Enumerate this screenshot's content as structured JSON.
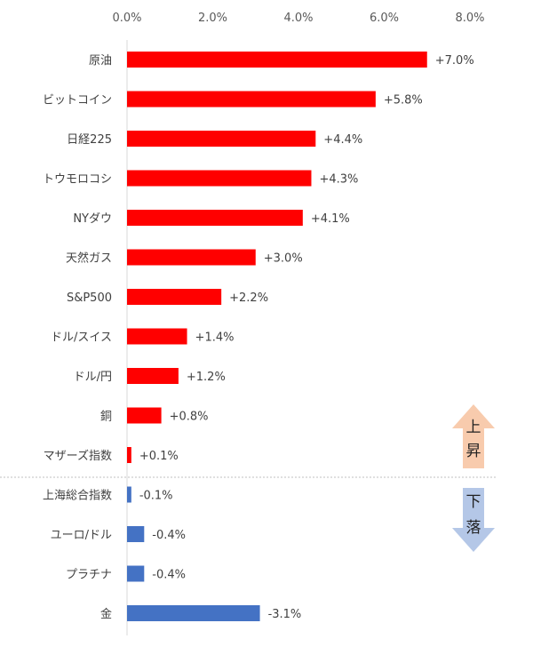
{
  "chart_data": {
    "type": "bar",
    "orientation": "horizontal",
    "xlim": [
      0,
      8
    ],
    "ticks": [
      "0.0%",
      "2.0%",
      "4.0%",
      "6.0%",
      "8.0%"
    ],
    "tick_values": [
      0,
      2,
      4,
      6,
      8
    ],
    "axis_position": "top",
    "grid": false,
    "note": "bar length shows magnitude; negative values drawn in blue",
    "categories": [
      "原油",
      "ビットコイン",
      "日経225",
      "トウモロコシ",
      "NYダウ",
      "天然ガス",
      "S&P500",
      "ドル/スイス",
      "ドル/円",
      "銅",
      "マザーズ指数",
      "上海総合指数",
      "ユーロ/ドル",
      "プラチナ",
      "金"
    ],
    "values": [
      7.0,
      5.8,
      4.4,
      4.3,
      4.1,
      3.0,
      2.2,
      1.4,
      1.2,
      0.8,
      0.1,
      -0.1,
      -0.4,
      -0.4,
      -3.1
    ],
    "data_labels": [
      "+7.0%",
      "+5.8%",
      "+4.4%",
      "+4.3%",
      "+4.1%",
      "+3.0%",
      "+2.2%",
      "+1.4%",
      "+1.2%",
      "+0.8%",
      "+0.1%",
      "-0.1%",
      "-0.4%",
      "-0.4%",
      "-3.1%"
    ],
    "colors": {
      "positive": "#ff0000",
      "negative": "#4472c4",
      "up_arrow": "#f8cbad",
      "down_arrow": "#b4c7e7"
    },
    "annotations": {
      "up": [
        "上",
        "昇"
      ],
      "down": [
        "下",
        "落"
      ]
    }
  }
}
